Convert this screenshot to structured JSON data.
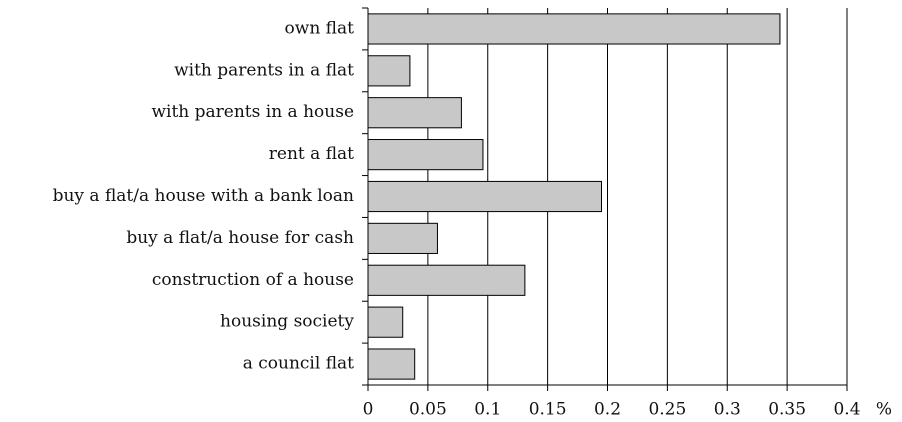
{
  "chart_data": {
    "type": "bar",
    "orientation": "horizontal",
    "categories": [
      "own flat",
      "with parents in a flat",
      "with parents in a house",
      "rent a flat",
      "buy a flat/a house with a bank loan",
      "buy a flat/a house for cash",
      "construction of a house",
      "housing society",
      "a council flat"
    ],
    "values": [
      0.344,
      0.035,
      0.078,
      0.096,
      0.195,
      0.058,
      0.131,
      0.029,
      0.039
    ],
    "color": "#c8c8c8",
    "x_label": "%",
    "xlim": [
      0,
      0.4
    ],
    "xticks": [
      0,
      0.05,
      0.1,
      0.15,
      0.2,
      0.25,
      0.3,
      0.35,
      0.4
    ],
    "grid": true
  }
}
